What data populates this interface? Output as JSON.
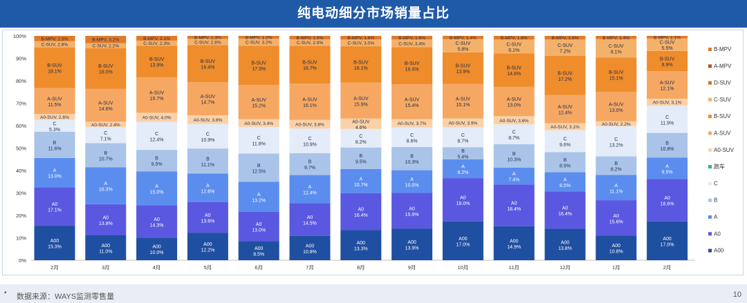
{
  "header": {
    "title": "纯电动细分市场销量占比"
  },
  "footer": {
    "source_note": "数据来源：WAYS监测零售量",
    "bullet": "•",
    "page_number": "10"
  },
  "chart_data": {
    "type": "stacked_bar_percent",
    "title": "纯电动细分市场销量占比",
    "xlabel": "",
    "ylabel": "",
    "ylim": [
      0,
      100
    ],
    "y_ticks": [
      "0%",
      "10%",
      "20%",
      "30%",
      "40%",
      "50%",
      "60%",
      "70%",
      "80%",
      "90%",
      "100%"
    ],
    "categories": [
      "2月",
      "3月",
      "4月",
      "5月",
      "6月",
      "7月",
      "8月",
      "9月",
      "10月",
      "11月",
      "12月",
      "1月",
      "2月"
    ],
    "legend_position": "right",
    "series": [
      {
        "name": "A00",
        "color": "#1f4fa0",
        "label_color": "#ffffff",
        "values": [
          15.3,
          11.0,
          10.0,
          12.2,
          8.5,
          10.8,
          13.3,
          13.9,
          17.0,
          14.9,
          13.8,
          10.8,
          17.0
        ]
      },
      {
        "name": "A0",
        "color": "#5a58e0",
        "label_color": "#ffffff",
        "values": [
          17.1,
          13.8,
          14.3,
          13.6,
          13.0,
          14.5,
          16.4,
          15.9,
          19.0,
          18.4,
          16.4,
          15.6,
          18.6
        ]
      },
      {
        "name": "A",
        "color": "#5b8def",
        "label_color": "#ffffff",
        "values": [
          13.0,
          16.3,
          15.0,
          12.6,
          13.2,
          12.4,
          10.7,
          10.0,
          8.2,
          7.4,
          8.5,
          11.1,
          9.5
        ]
      },
      {
        "name": "B",
        "color": "#a9c4e8",
        "label_color": "#1f2d4a",
        "values": [
          11.6,
          10.7,
          9.5,
          11.1,
          12.5,
          9.7,
          9.5,
          10.3,
          5.4,
          10.3,
          8.9,
          8.2,
          10.8
        ]
      },
      {
        "name": "C",
        "color": "#e3ecf8",
        "label_color": "#1f2d4a",
        "values": [
          5.3,
          7.1,
          12.4,
          10.9,
          11.8,
          10.9,
          8.2,
          8.6,
          8.7,
          8.7,
          9.6,
          13.2,
          11.9
        ]
      },
      {
        "name": "跑车",
        "color": "#2bb39a",
        "label_color": "#1f2d4a",
        "values": [
          0,
          0,
          0,
          0,
          0,
          0,
          0,
          0,
          0,
          0,
          0,
          0,
          0
        ]
      },
      {
        "name": "A0-SUV",
        "color": "#fbd2a8",
        "label_color": "#1f2d4a",
        "values": [
          2.6,
          2.4,
          4.0,
          3.8,
          3.4,
          3.8,
          4.6,
          3.7,
          3.9,
          3.6,
          3.1,
          2.2,
          3.1
        ]
      },
      {
        "name": "A-SUV",
        "color": "#f6a863",
        "label_color": "#1f2d4a",
        "values": [
          11.5,
          14.6,
          15.7,
          14.7,
          15.2,
          16.1,
          15.9,
          15.4,
          15.1,
          13.0,
          12.4,
          13.0,
          12.1
        ]
      },
      {
        "name": "B-SUV",
        "color": "#ef8c2c",
        "label_color": "#1f2d4a",
        "values": [
          18.1,
          18.0,
          13.9,
          16.4,
          17.3,
          16.7,
          16.1,
          16.4,
          13.9,
          14.6,
          17.2,
          15.1,
          8.9
        ]
      },
      {
        "name": "C-SUV",
        "color": "#f4b169",
        "label_color": "#1f2d4a",
        "values": [
          2.8,
          2.2,
          2.3,
          2.8,
          3.2,
          2.9,
          3.0,
          3.4,
          5.8,
          6.1,
          7.2,
          8.1,
          5.5
        ]
      },
      {
        "name": "D-SUV",
        "color": "#d96f1f",
        "label_color": "#1f2d4a",
        "values": [
          0,
          0,
          0,
          0,
          0,
          0,
          0,
          0,
          0,
          0,
          0,
          0,
          0
        ]
      },
      {
        "name": "A-MPV",
        "color": "#b8541a",
        "label_color": "#1f2d4a",
        "values": [
          0,
          0,
          0,
          0,
          0,
          0,
          0,
          0,
          0,
          0,
          0,
          0,
          0
        ]
      },
      {
        "name": "B-MPV",
        "color": "#e07a2a",
        "label_color": "#1f2d4a",
        "values": [
          2.3,
          3.2,
          2.1,
          1.3,
          1.2,
          1.5,
          1.6,
          1.6,
          1.4,
          1.6,
          1.6,
          1.4,
          1.1
        ]
      }
    ],
    "legend_order": [
      "B-MPV",
      "A-MPV",
      "D-SUV",
      "C-SUV",
      "B-SUV",
      "A-SUV",
      "A0-SUV",
      "跑车",
      "C",
      "B",
      "A",
      "A0",
      "A00"
    ]
  }
}
